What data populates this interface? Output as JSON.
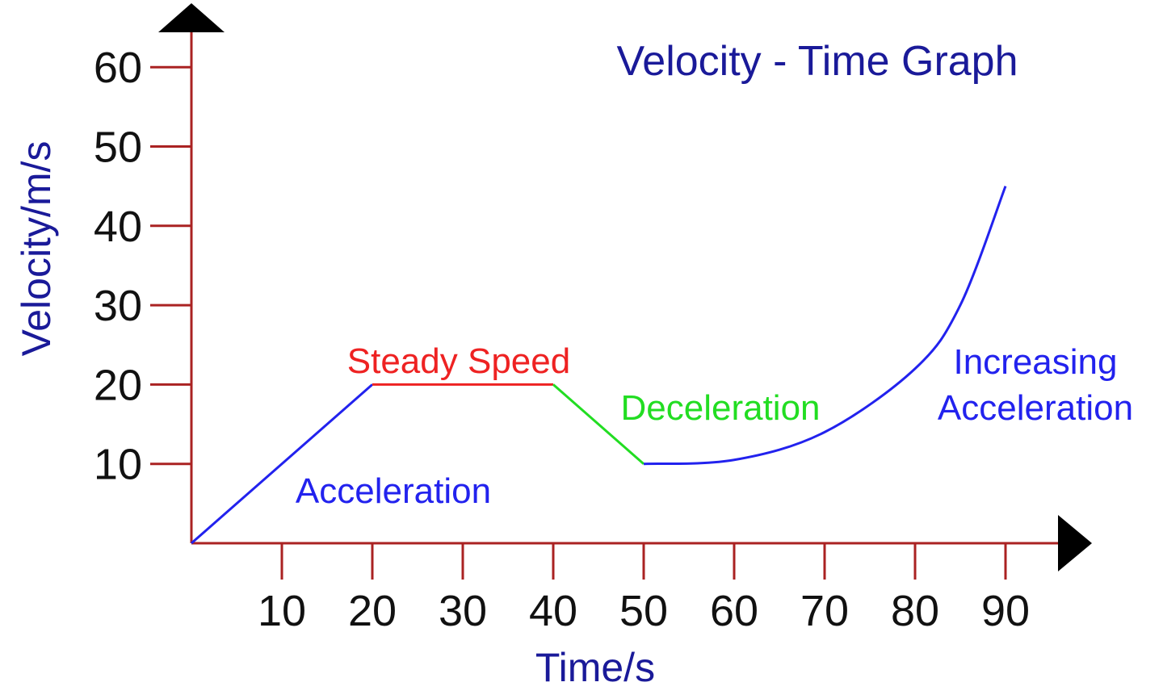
{
  "chart_data": {
    "type": "line",
    "title": "Velocity - Time Graph",
    "xlabel": "Time/s",
    "ylabel": "Velocity/m/s",
    "xlim": [
      0,
      90
    ],
    "ylim": [
      0,
      60
    ],
    "x_ticks": [
      "10",
      "20",
      "30",
      "40",
      "50",
      "60",
      "70",
      "80",
      "90"
    ],
    "y_ticks": [
      "10",
      "20",
      "30",
      "40",
      "50",
      "60"
    ],
    "grid": false,
    "segments": [
      {
        "label": "Acceleration",
        "color": "#2222ee",
        "shape": "linear",
        "points": [
          [
            0,
            0
          ],
          [
            20,
            20
          ]
        ]
      },
      {
        "label": "Steady Speed",
        "color": "#ee2222",
        "shape": "linear",
        "points": [
          [
            20,
            20
          ],
          [
            40,
            20
          ]
        ]
      },
      {
        "label": "Deceleration",
        "color": "#22dd22",
        "shape": "linear",
        "points": [
          [
            40,
            20
          ],
          [
            50,
            10
          ]
        ]
      },
      {
        "label": "Increasing Acceleration",
        "color": "#2222ee",
        "shape": "curve",
        "points": [
          [
            50,
            10
          ],
          [
            60,
            10.5
          ],
          [
            70,
            14
          ],
          [
            80,
            22
          ],
          [
            85,
            30
          ],
          [
            90,
            45
          ]
        ]
      }
    ],
    "annotations": [
      {
        "text": "Acceleration",
        "color": "#2222ee"
      },
      {
        "text": "Steady Speed",
        "color": "#ee2222"
      },
      {
        "text": "Deceleration",
        "color": "#22dd22"
      },
      {
        "text": "Increasing",
        "color": "#2222ee"
      },
      {
        "text": "Acceleration",
        "color": "#2222ee"
      }
    ],
    "colors": {
      "axis": "#aa2222",
      "title": "#1a1a99",
      "axis_label": "#1a1a99",
      "arrow": "#000000"
    }
  }
}
